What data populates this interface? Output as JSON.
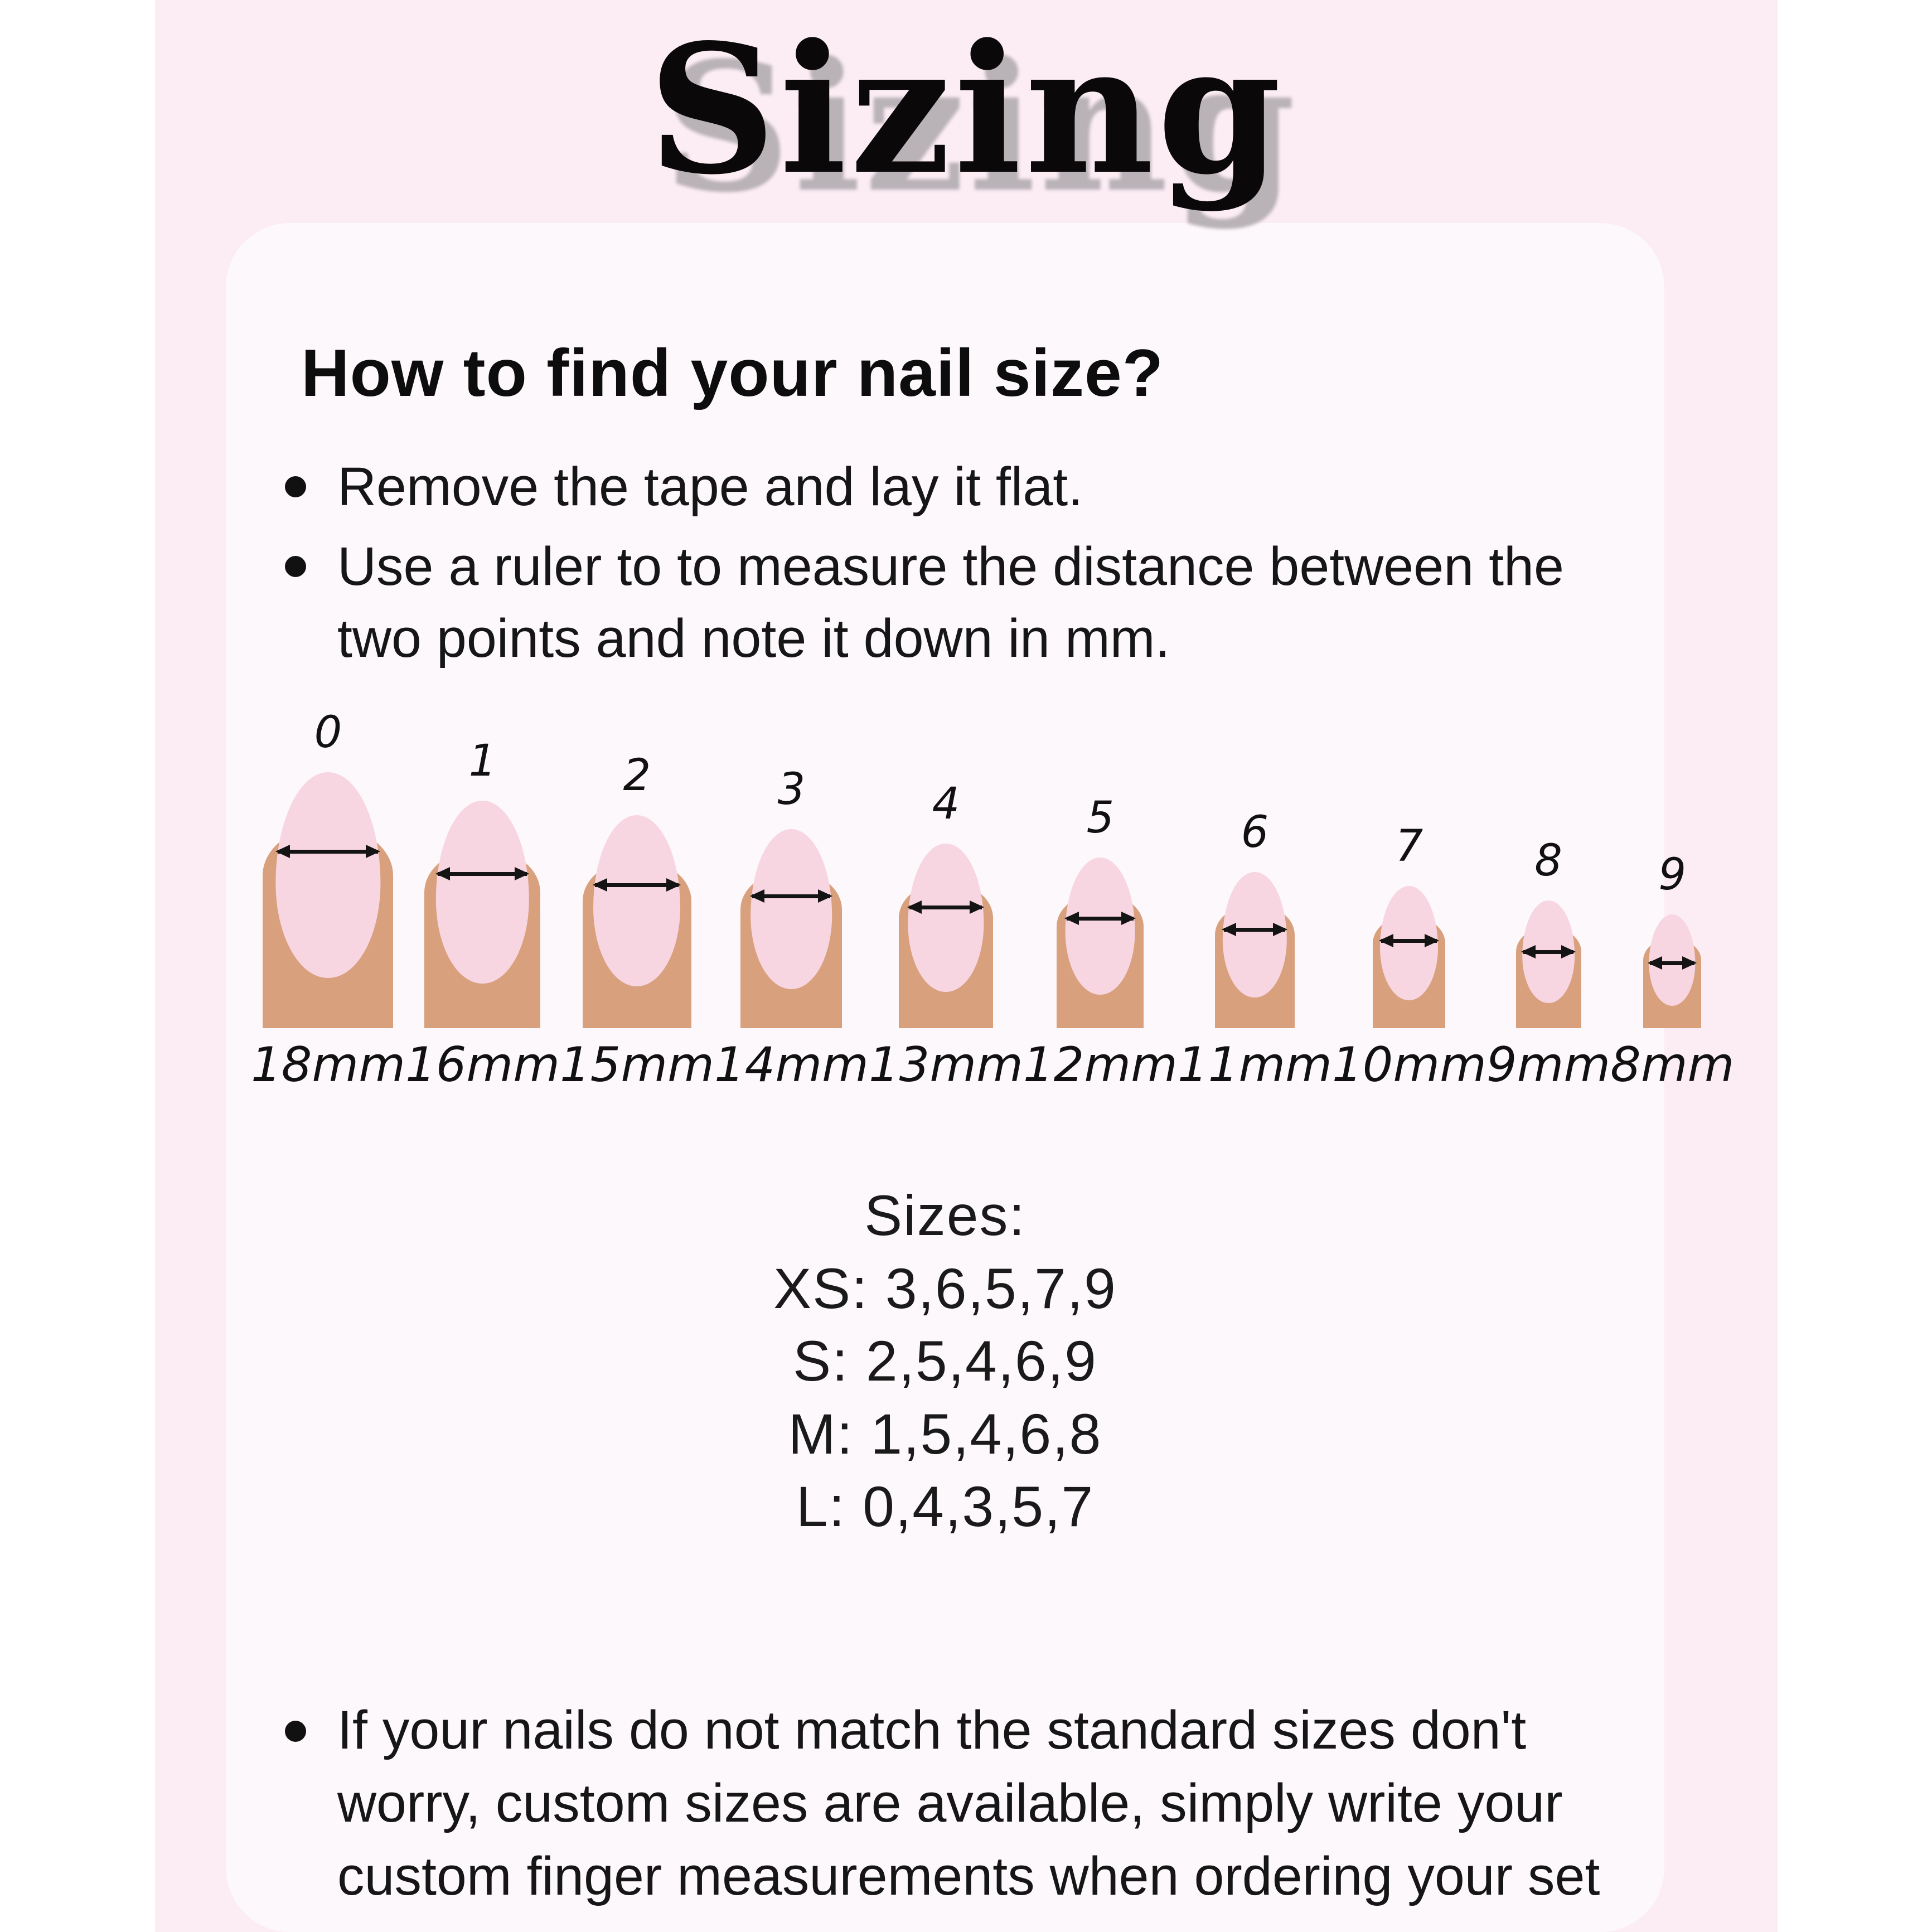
{
  "page": {
    "background_color": "#ffffff",
    "panel_color": "#fcecf4",
    "card_color": "#fdf8fb"
  },
  "title": {
    "text": "Sizing",
    "color": "#0a0808",
    "shadow_color": "#b9b2b7"
  },
  "guide": {
    "heading": "How to find your nail size?",
    "bullets": [
      "Remove the tape and lay it flat.",
      "Use a ruler to to measure the distance between the two points and note it down in mm."
    ]
  },
  "nail_chart": {
    "finger_color": "#d9a07d",
    "nail_color": "#f7d6e1",
    "arrow_color": "#141414",
    "items": [
      {
        "number": "0",
        "label": "18mm",
        "mm": 18
      },
      {
        "number": "1",
        "label": "16mm",
        "mm": 16
      },
      {
        "number": "2",
        "label": "15mm",
        "mm": 15
      },
      {
        "number": "3",
        "label": "14mm",
        "mm": 14
      },
      {
        "number": "4",
        "label": "13mm",
        "mm": 13
      },
      {
        "number": "5",
        "label": "12mm",
        "mm": 12
      },
      {
        "number": "6",
        "label": "11mm",
        "mm": 11
      },
      {
        "number": "7",
        "label": "10mm",
        "mm": 10
      },
      {
        "number": "8",
        "label": "9mm",
        "mm": 9
      },
      {
        "number": "9",
        "label": "8mm",
        "mm": 8
      }
    ]
  },
  "sizes": {
    "heading": "Sizes:",
    "lines": [
      "XS: 3,6,5,7,9",
      "S: 2,5,4,6,9",
      "M: 1,5,4,6,8",
      "L: 0,4,3,5,7"
    ]
  },
  "custom_note": "If your nails do not match the standard sizes don't worry, custom sizes are available, simply write your custom finger measurements when ordering your set"
}
